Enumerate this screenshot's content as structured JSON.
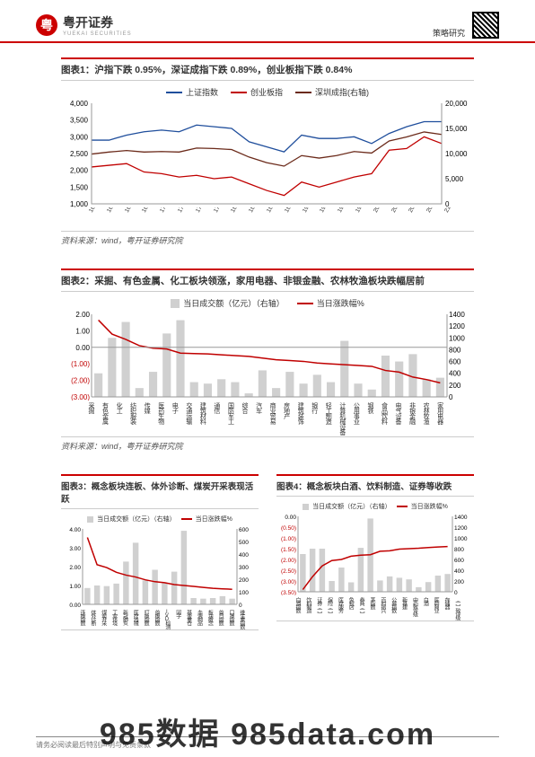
{
  "header": {
    "brand_name": "粤开证券",
    "brand_sub": "YUEKAI SECURITIES",
    "category": "策略研究"
  },
  "chart1": {
    "title": "图表1：沪指下跌 0.95%，深证成指下跌 0.89%，创业板指下跌 0.84%",
    "type": "line",
    "legend": [
      {
        "label": "上证指数",
        "color": "#1f4e9c"
      },
      {
        "label": "创业板指",
        "color": "#c00000"
      },
      {
        "label": "深圳成指(右轴)",
        "color": "#6b2a1a"
      }
    ],
    "y_left": {
      "min": 1000,
      "max": 4000,
      "ticks": [
        1000,
        1500,
        2000,
        2500,
        3000,
        3500,
        4000
      ]
    },
    "y_right": {
      "min": 0,
      "max": 20000,
      "ticks": [
        0,
        5000,
        10000,
        15000,
        20000
      ]
    },
    "x_labels": [
      "16-03",
      "16-06",
      "16-09",
      "16-12",
      "17-03",
      "17-06",
      "17-09",
      "17-12",
      "18-03",
      "18-06",
      "18-09",
      "18-12",
      "19-03",
      "19-06",
      "19-09",
      "19-12",
      "20-03",
      "20-06",
      "20-09",
      "20-12",
      "21-03"
    ],
    "series": {
      "sh": [
        2900,
        2900,
        3050,
        3150,
        3200,
        3150,
        3350,
        3300,
        3250,
        2850,
        2700,
        2550,
        3050,
        2950,
        2950,
        3000,
        2800,
        3100,
        3300,
        3450,
        3450
      ],
      "sz": [
        9900,
        10300,
        10600,
        10300,
        10400,
        10300,
        11100,
        11000,
        10800,
        9300,
        8200,
        7500,
        9600,
        9100,
        9600,
        10400,
        10100,
        12500,
        13300,
        14300,
        13800
      ],
      "cy": [
        2100,
        2150,
        2200,
        1950,
        1900,
        1800,
        1850,
        1750,
        1800,
        1600,
        1400,
        1250,
        1650,
        1500,
        1650,
        1800,
        1900,
        2600,
        2650,
        3000,
        2800
      ]
    },
    "source": "资料来源：wind，粤开证券研究院",
    "background_color": "#ffffff",
    "grid_color": "#e0e0e0",
    "axis_fontsize": 8
  },
  "chart2": {
    "title": "图表2：采掘、有色金属、化工板块领涨，家用电器、非银金融、农林牧渔板块跌幅居前",
    "type": "dual-bar-line",
    "legend_bar": "当日成交额（亿元）（右轴）",
    "legend_line": "当日涨跌幅%",
    "bar_color": "#d0d0d0",
    "line_color": "#c00000",
    "y_left": {
      "min": -3.0,
      "max": 2.0,
      "ticks": [
        "2.00",
        "1.00",
        "0.00",
        "(1.00)",
        "(2.00)",
        "(3.00)"
      ]
    },
    "y_right": {
      "min": 0,
      "max": 1400,
      "ticks": [
        0,
        200,
        400,
        600,
        800,
        1000,
        1200,
        1400
      ]
    },
    "x_labels": [
      "采掘",
      "有色金属",
      "化工",
      "纺织服装",
      "传媒",
      "医药生物",
      "电子",
      "交通运输",
      "建筑材料",
      "通信",
      "国防军工",
      "综合",
      "汽车",
      "商业贸易",
      "房地产",
      "建筑装饰",
      "银行",
      "轻工制造",
      "计算机械设备",
      "公用事业",
      "钢铁",
      "食品饮料",
      "电气设备",
      "非银金融",
      "农林牧渔",
      "家用电器"
    ],
    "bar_values": [
      400,
      1000,
      1270,
      150,
      425,
      1075,
      1300,
      250,
      225,
      300,
      250,
      60,
      450,
      150,
      425,
      225,
      375,
      250,
      950,
      225,
      125,
      700,
      600,
      725,
      300,
      325
    ],
    "line_values": [
      1.65,
      0.8,
      0.48,
      0.1,
      -0.05,
      -0.1,
      -0.35,
      -0.38,
      -0.4,
      -0.45,
      -0.5,
      -0.55,
      -0.65,
      -0.75,
      -0.8,
      -0.85,
      -0.95,
      -1.0,
      -1.05,
      -1.1,
      -1.15,
      -1.4,
      -1.5,
      -1.8,
      -1.95,
      -2.15
    ],
    "source": "资料来源：wind，粤开证券研究院",
    "neg_color": "#c00000"
  },
  "chart3": {
    "title": "图表3：概念板块连板、体外诊断、煤炭开采表现活跃",
    "type": "dual-bar-line",
    "legend_bar": "当日成交额（亿元）（右轴）",
    "legend_line": "当日涨跌幅%",
    "bar_color": "#d0d0d0",
    "line_color": "#c00000",
    "y_left": {
      "min": 0,
      "max": 4.0,
      "ticks": [
        "4.00",
        "3.00",
        "2.00",
        "1.00",
        "0.00"
      ]
    },
    "y_right": {
      "min": 0,
      "max": 600,
      "ticks": [
        0,
        100,
        200,
        300,
        400,
        500,
        600
      ]
    },
    "x_labels": [
      "连板指数",
      "体外诊断",
      "煤炭开采",
      "工业环境",
      "新冠肺炎",
      "医疗器械",
      "打板指数",
      "首板指数",
      "IVD检测",
      "因子",
      "基金重仓",
      "血液制品",
      "板块概念",
      "首日指数",
      "口罩指数",
      "维生素指数"
    ],
    "bar_values": [
      130,
      150,
      145,
      165,
      340,
      490,
      190,
      275,
      170,
      260,
      585,
      50,
      45,
      50,
      65,
      45
    ],
    "line_values": [
      3.55,
      2.1,
      1.95,
      1.7,
      1.55,
      1.45,
      1.3,
      1.2,
      1.15,
      1.05,
      1.0,
      0.95,
      0.9,
      0.85,
      0.82,
      0.8
    ]
  },
  "chart4": {
    "title": "图表4：概念板块白酒、饮料制造、证券等收跌",
    "type": "dual-bar-line",
    "legend_bar": "当日成交额（亿元）（右轴）",
    "legend_line": "当日涨跌幅%",
    "bar_color": "#d0d0d0",
    "line_color": "#c00000",
    "y_left": {
      "min": -3.5,
      "max": 0.0,
      "ticks": [
        "0.00",
        "(0.50)",
        "(1.00)",
        "(1.50)",
        "(2.00)",
        "(2.50)",
        "(3.00)",
        "(3.50)"
      ]
    },
    "y_right": {
      "min": 0,
      "max": 1400,
      "ticks": [
        0,
        200,
        400,
        600,
        800,
        1000,
        1200,
        1400
      ]
    },
    "x_labels": [
      "白酒指数",
      "饮料制造",
      "证券（二）",
      "保险（二）",
      "医疗服务",
      "免税店",
      "券商（二）",
      "茅指数",
      "百村振兴",
      "公募指数",
      "新基建",
      "中药致评级",
      "白酒",
      "医药商业",
      "存储器",
      "（二）致评级"
    ],
    "bar_values": [
      700,
      800,
      800,
      200,
      450,
      175,
      815,
      1360,
      210,
      285,
      260,
      230,
      85,
      180,
      300,
      330
    ],
    "line_values": [
      -3.4,
      -2.8,
      -2.3,
      -2.05,
      -2.0,
      -1.85,
      -1.8,
      -1.78,
      -1.62,
      -1.6,
      -1.52,
      -1.5,
      -1.48,
      -1.45,
      -1.42,
      -1.4
    ]
  },
  "footer": "请务必阅读最后特别声明与免责条款",
  "watermark": "985数据  985data.com"
}
